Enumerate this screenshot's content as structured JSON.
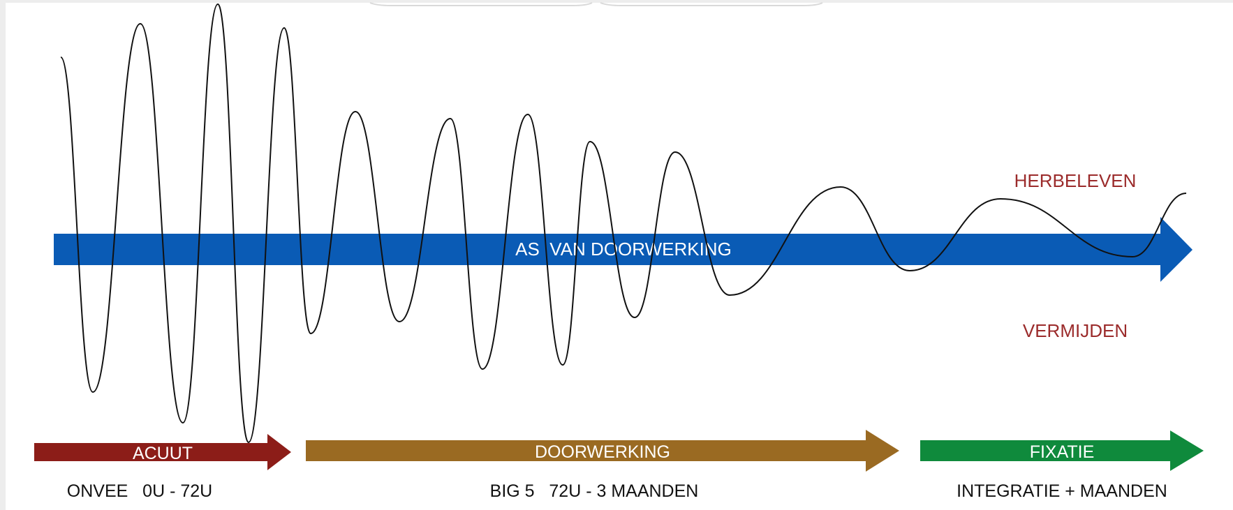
{
  "diagram": {
    "colors": {
      "background": "#ffffff",
      "page_border": "#ededed",
      "main_axis": "#0a5bb5",
      "wave": "#111111",
      "acuut": "#8c1d18",
      "doorwerking": "#9a6a22",
      "fixatie": "#0f8a3c",
      "accent_label": "#9b2b2b",
      "caption": "#111111",
      "arrow_text": "#ffffff"
    },
    "main_axis": {
      "label": "AS  VAN DOORWERKING"
    },
    "wave_labels": {
      "top": "HERBELEVEN",
      "bottom": "VERMIJDEN"
    },
    "phases": [
      {
        "id": "acuut",
        "label": "ACUUT",
        "caption": "ONVEE   0U - 72U"
      },
      {
        "id": "doorwerking",
        "label": "DOORWERKING",
        "caption": "BIG 5   72U - 3 MAANDEN"
      },
      {
        "id": "fixatie",
        "label": "FIXATIE",
        "caption": "INTEGRATIE + MAANDEN"
      }
    ]
  }
}
